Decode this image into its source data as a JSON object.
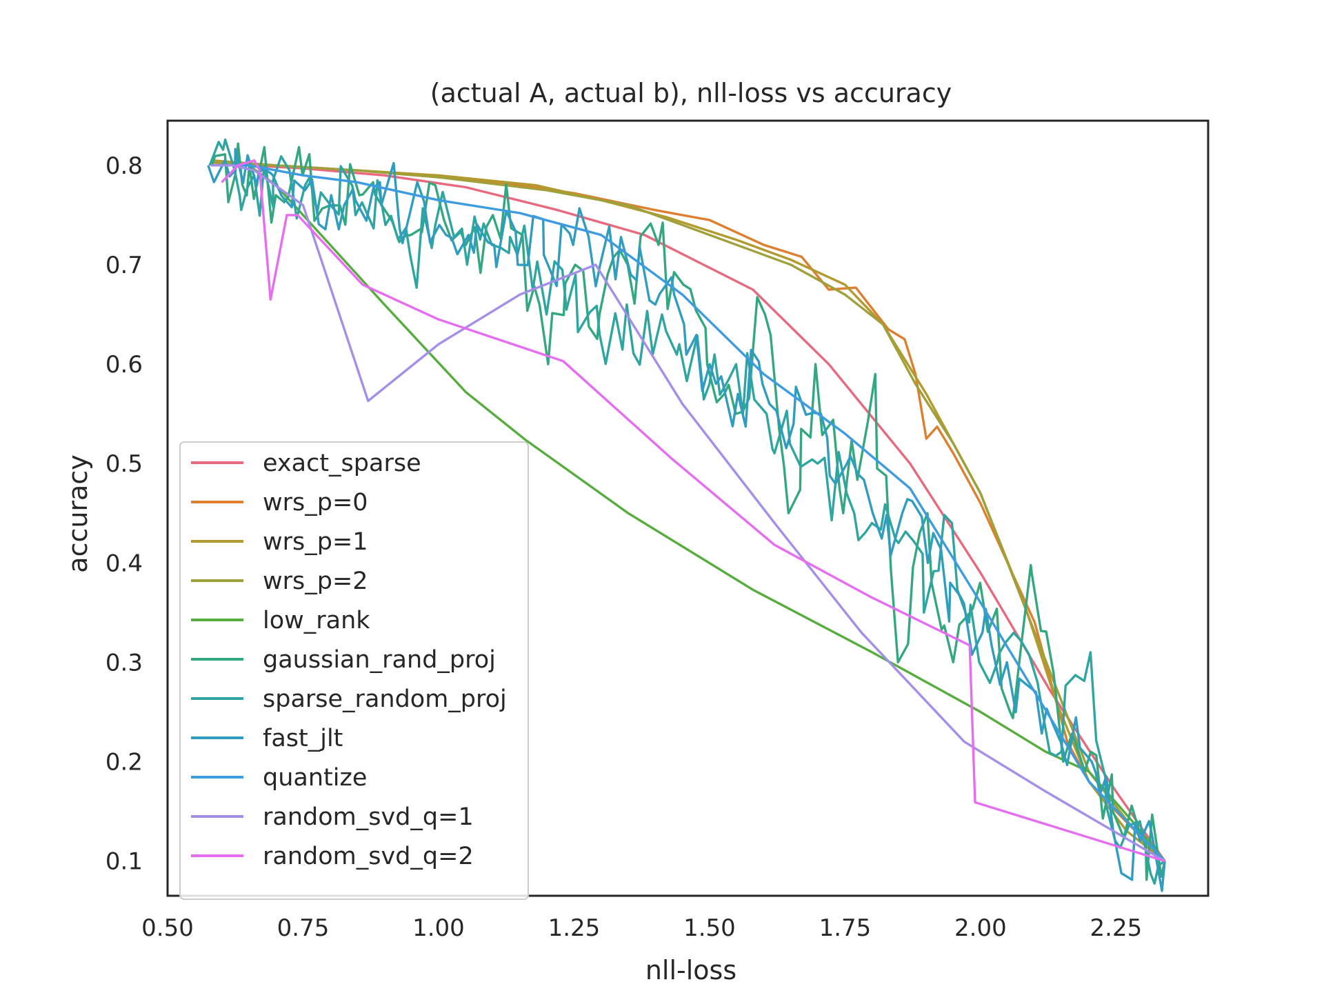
{
  "chart_data": {
    "type": "line",
    "title": "(actual A, actual b), nll-loss vs accuracy",
    "xlabel": "nll-loss",
    "ylabel": "accuracy",
    "xlim": [
      0.5,
      2.42
    ],
    "ylim": [
      0.065,
      0.845
    ],
    "xticks": [
      0.5,
      0.75,
      1.0,
      1.25,
      1.5,
      1.75,
      2.0,
      2.25
    ],
    "xtick_labels": [
      "0.50",
      "0.75",
      "1.00",
      "1.25",
      "1.50",
      "1.75",
      "2.00",
      "2.25"
    ],
    "yticks": [
      0.1,
      0.2,
      0.3,
      0.4,
      0.5,
      0.6,
      0.7,
      0.8
    ],
    "ytick_labels": [
      "0.1",
      "0.2",
      "0.3",
      "0.4",
      "0.5",
      "0.6",
      "0.7",
      "0.8"
    ],
    "grid": false,
    "legend_position": "lower-left",
    "series": [
      {
        "name": "exact_sparse",
        "color": "#e8697e",
        "x": [
          0.58,
          0.65,
          0.75,
          0.9,
          1.05,
          1.22,
          1.38,
          1.58,
          1.72,
          1.87,
          2.0,
          2.13,
          2.25,
          2.34
        ],
        "y": [
          0.803,
          0.8,
          0.797,
          0.79,
          0.778,
          0.755,
          0.73,
          0.675,
          0.6,
          0.5,
          0.39,
          0.27,
          0.17,
          0.1
        ]
      },
      {
        "name": "wrs_p=0",
        "color": "#dd7f2e",
        "x": [
          0.58,
          0.7,
          0.85,
          1.0,
          1.15,
          1.25,
          1.4,
          1.5,
          1.6,
          1.67,
          1.72,
          1.77,
          1.83,
          1.86,
          1.88,
          1.9,
          1.92,
          1.95,
          2.0,
          2.05,
          2.1,
          2.13,
          2.16,
          2.2,
          2.25,
          2.34
        ],
        "y": [
          0.805,
          0.8,
          0.795,
          0.788,
          0.78,
          0.772,
          0.755,
          0.745,
          0.72,
          0.708,
          0.675,
          0.677,
          0.635,
          0.625,
          0.59,
          0.525,
          0.537,
          0.51,
          0.46,
          0.4,
          0.34,
          0.28,
          0.22,
          0.18,
          0.15,
          0.1
        ],
        "style": "jagged"
      },
      {
        "name": "wrs_p=1",
        "color": "#b39a2e",
        "x": [
          0.58,
          0.7,
          0.85,
          1.0,
          1.18,
          1.3,
          1.42,
          1.55,
          1.65,
          1.75,
          1.82,
          1.9,
          2.0,
          2.08,
          2.14,
          2.2,
          2.27,
          2.34
        ],
        "y": [
          0.805,
          0.8,
          0.795,
          0.79,
          0.78,
          0.765,
          0.748,
          0.725,
          0.705,
          0.68,
          0.64,
          0.57,
          0.47,
          0.36,
          0.26,
          0.18,
          0.13,
          0.1
        ]
      },
      {
        "name": "wrs_p=2",
        "color": "#a0a03a",
        "x": [
          0.58,
          0.7,
          0.85,
          1.0,
          1.2,
          1.35,
          1.5,
          1.65,
          1.75,
          1.82,
          1.88,
          1.95,
          2.0,
          2.1,
          2.2,
          2.3,
          2.34
        ],
        "y": [
          0.803,
          0.8,
          0.795,
          0.788,
          0.775,
          0.76,
          0.73,
          0.7,
          0.67,
          0.64,
          0.58,
          0.52,
          0.47,
          0.33,
          0.19,
          0.12,
          0.1
        ]
      },
      {
        "name": "low_rank",
        "color": "#56ad3d",
        "x": [
          0.58,
          0.65,
          0.7,
          0.8,
          0.9,
          1.05,
          1.16,
          1.35,
          1.58,
          1.8,
          2.0,
          2.12,
          2.2,
          2.28,
          2.34
        ],
        "y": [
          0.8,
          0.8,
          0.78,
          0.72,
          0.66,
          0.572,
          0.524,
          0.45,
          0.373,
          0.31,
          0.25,
          0.21,
          0.19,
          0.14,
          0.1
        ]
      },
      {
        "name": "gaussian_rand_proj",
        "color": "#33a77e",
        "x": [
          0.58,
          0.62,
          0.65,
          0.7,
          0.75,
          0.8,
          0.85,
          0.9,
          0.95,
          1.0,
          1.05,
          1.1,
          1.15,
          1.2,
          1.25,
          1.3,
          1.35,
          1.4,
          1.45,
          1.5,
          1.55,
          1.6,
          1.65,
          1.7,
          1.75,
          1.8,
          1.85,
          1.9,
          1.95,
          2.0,
          2.05,
          2.1,
          2.15,
          2.2,
          2.25,
          2.3,
          2.34
        ],
        "y": [
          0.8,
          0.79,
          0.8,
          0.77,
          0.79,
          0.76,
          0.77,
          0.76,
          0.73,
          0.78,
          0.72,
          0.75,
          0.73,
          0.6,
          0.7,
          0.65,
          0.7,
          0.72,
          0.68,
          0.6,
          0.55,
          0.65,
          0.45,
          0.6,
          0.45,
          0.59,
          0.3,
          0.45,
          0.3,
          0.38,
          0.25,
          0.39,
          0.2,
          0.21,
          0.15,
          0.12,
          0.1
        ],
        "style": "noisy"
      },
      {
        "name": "sparse_random_proj",
        "color": "#2ea5a0",
        "x": [
          0.58,
          0.62,
          0.66,
          0.7,
          0.75,
          0.8,
          0.85,
          0.9,
          0.95,
          1.0,
          1.05,
          1.1,
          1.15,
          1.2,
          1.25,
          1.3,
          1.35,
          1.4,
          1.45,
          1.5,
          1.55,
          1.6,
          1.65,
          1.7,
          1.75,
          1.8,
          1.85,
          1.9,
          1.95,
          2.0,
          2.05,
          2.1,
          2.15,
          2.2,
          2.25,
          2.3,
          2.34
        ],
        "y": [
          0.8,
          0.795,
          0.79,
          0.785,
          0.78,
          0.76,
          0.75,
          0.74,
          0.71,
          0.74,
          0.7,
          0.72,
          0.71,
          0.65,
          0.69,
          0.63,
          0.66,
          0.61,
          0.62,
          0.58,
          0.6,
          0.55,
          0.52,
          0.5,
          0.47,
          0.44,
          0.42,
          0.35,
          0.44,
          0.3,
          0.32,
          0.28,
          0.21,
          0.31,
          0.12,
          0.14,
          0.1
        ],
        "style": "noisy"
      },
      {
        "name": "fast_jlt",
        "color": "#2f9cc0",
        "x": [
          0.58,
          0.62,
          0.66,
          0.7,
          0.75,
          0.8,
          0.85,
          0.9,
          0.95,
          1.0,
          1.05,
          1.1,
          1.15,
          1.2,
          1.25,
          1.3,
          1.35,
          1.4,
          1.45,
          1.5,
          1.55,
          1.6,
          1.65,
          1.7,
          1.75,
          1.8,
          1.85,
          1.9,
          1.95,
          2.0,
          2.05,
          2.1,
          2.15,
          2.2,
          2.25,
          2.3,
          2.34
        ],
        "y": [
          0.8,
          0.795,
          0.78,
          0.79,
          0.775,
          0.77,
          0.765,
          0.76,
          0.75,
          0.74,
          0.73,
          0.72,
          0.7,
          0.71,
          0.72,
          0.7,
          0.69,
          0.66,
          0.64,
          0.6,
          0.57,
          0.58,
          0.54,
          0.55,
          0.5,
          0.45,
          0.45,
          0.4,
          0.38,
          0.33,
          0.3,
          0.27,
          0.22,
          0.2,
          0.13,
          0.12,
          0.1
        ],
        "style": "noisy"
      },
      {
        "name": "quantize",
        "color": "#3d9be0",
        "x": [
          0.58,
          0.65,
          0.75,
          0.85,
          1.0,
          1.15,
          1.3,
          1.45,
          1.6,
          1.75,
          1.87,
          2.0,
          2.1,
          2.2,
          2.34
        ],
        "y": [
          0.8,
          0.8,
          0.79,
          0.783,
          0.765,
          0.752,
          0.73,
          0.67,
          0.59,
          0.53,
          0.475,
          0.36,
          0.27,
          0.18,
          0.1
        ]
      },
      {
        "name": "random_svd_q=1",
        "color": "#a48ee8",
        "x": [
          0.58,
          0.62,
          0.66,
          0.75,
          0.87,
          1.0,
          1.15,
          1.29,
          1.45,
          1.62,
          1.78,
          1.97,
          2.12,
          2.34
        ],
        "y": [
          0.8,
          0.8,
          0.795,
          0.76,
          0.563,
          0.62,
          0.67,
          0.7,
          0.56,
          0.44,
          0.33,
          0.22,
          0.17,
          0.1
        ]
      },
      {
        "name": "random_svd_q=2",
        "color": "#e66cf0",
        "x": [
          0.6,
          0.63,
          0.66,
          0.67,
          0.69,
          0.72,
          0.74,
          0.86,
          1.0,
          1.23,
          1.43,
          1.62,
          1.8,
          1.98,
          1.99,
          2.34
        ],
        "y": [
          0.783,
          0.8,
          0.805,
          0.795,
          0.665,
          0.75,
          0.75,
          0.68,
          0.645,
          0.603,
          0.505,
          0.418,
          0.365,
          0.317,
          0.159,
          0.1
        ]
      }
    ]
  }
}
